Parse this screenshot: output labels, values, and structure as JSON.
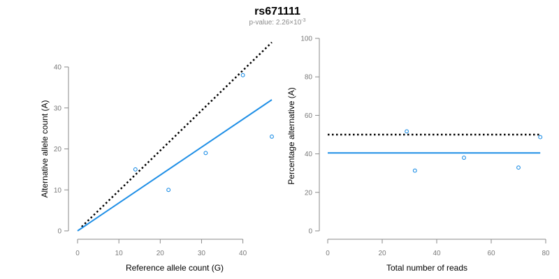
{
  "header": {
    "title": "rs671111",
    "subtitle_prefix": "p-value: 2.26×10",
    "subtitle_exponent": "-3"
  },
  "colors": {
    "points": "#1f8fe6",
    "fit_line": "#1f8fe6",
    "expected_line": "#000000",
    "axis": "#8a8a8a",
    "tick_text": "#7a7a7a"
  },
  "chart_data": [
    {
      "type": "scatter",
      "xlabel": "Reference allele count (G)",
      "ylabel": "Alternative allele count (A)",
      "xlim": [
        0,
        47
      ],
      "ylim": [
        0,
        40
      ],
      "xticks": [
        0,
        10,
        20,
        30,
        40
      ],
      "yticks": [
        0,
        10,
        20,
        30,
        40
      ],
      "points": [
        {
          "x": 14,
          "y": 15
        },
        {
          "x": 22,
          "y": 10
        },
        {
          "x": 31,
          "y": 19
        },
        {
          "x": 40,
          "y": 38
        },
        {
          "x": 47,
          "y": 23
        }
      ],
      "lines": [
        {
          "style": "dotted",
          "color": "expected_line",
          "from": [
            1,
            1
          ],
          "to": [
            47,
            46
          ]
        },
        {
          "style": "solid",
          "color": "fit_line",
          "from": [
            0,
            0
          ],
          "to": [
            47,
            32
          ]
        }
      ]
    },
    {
      "type": "scatter",
      "xlabel": "Total number of reads",
      "ylabel": "Percentage alternative (A)",
      "xlim": [
        0,
        80
      ],
      "ylim": [
        0,
        100
      ],
      "xticks": [
        0,
        20,
        40,
        60,
        80
      ],
      "yticks": [
        0,
        20,
        40,
        60,
        80,
        100
      ],
      "points": [
        {
          "x": 29,
          "y": 51.7
        },
        {
          "x": 32,
          "y": 31.3
        },
        {
          "x": 50,
          "y": 38
        },
        {
          "x": 70,
          "y": 32.9
        },
        {
          "x": 78,
          "y": 48.7
        }
      ],
      "lines": [
        {
          "style": "dotted",
          "color": "expected_line",
          "from": [
            0,
            50
          ],
          "to": [
            78,
            50
          ]
        },
        {
          "style": "solid",
          "color": "fit_line",
          "from": [
            0,
            40.5
          ],
          "to": [
            78,
            40.5
          ]
        }
      ]
    }
  ]
}
